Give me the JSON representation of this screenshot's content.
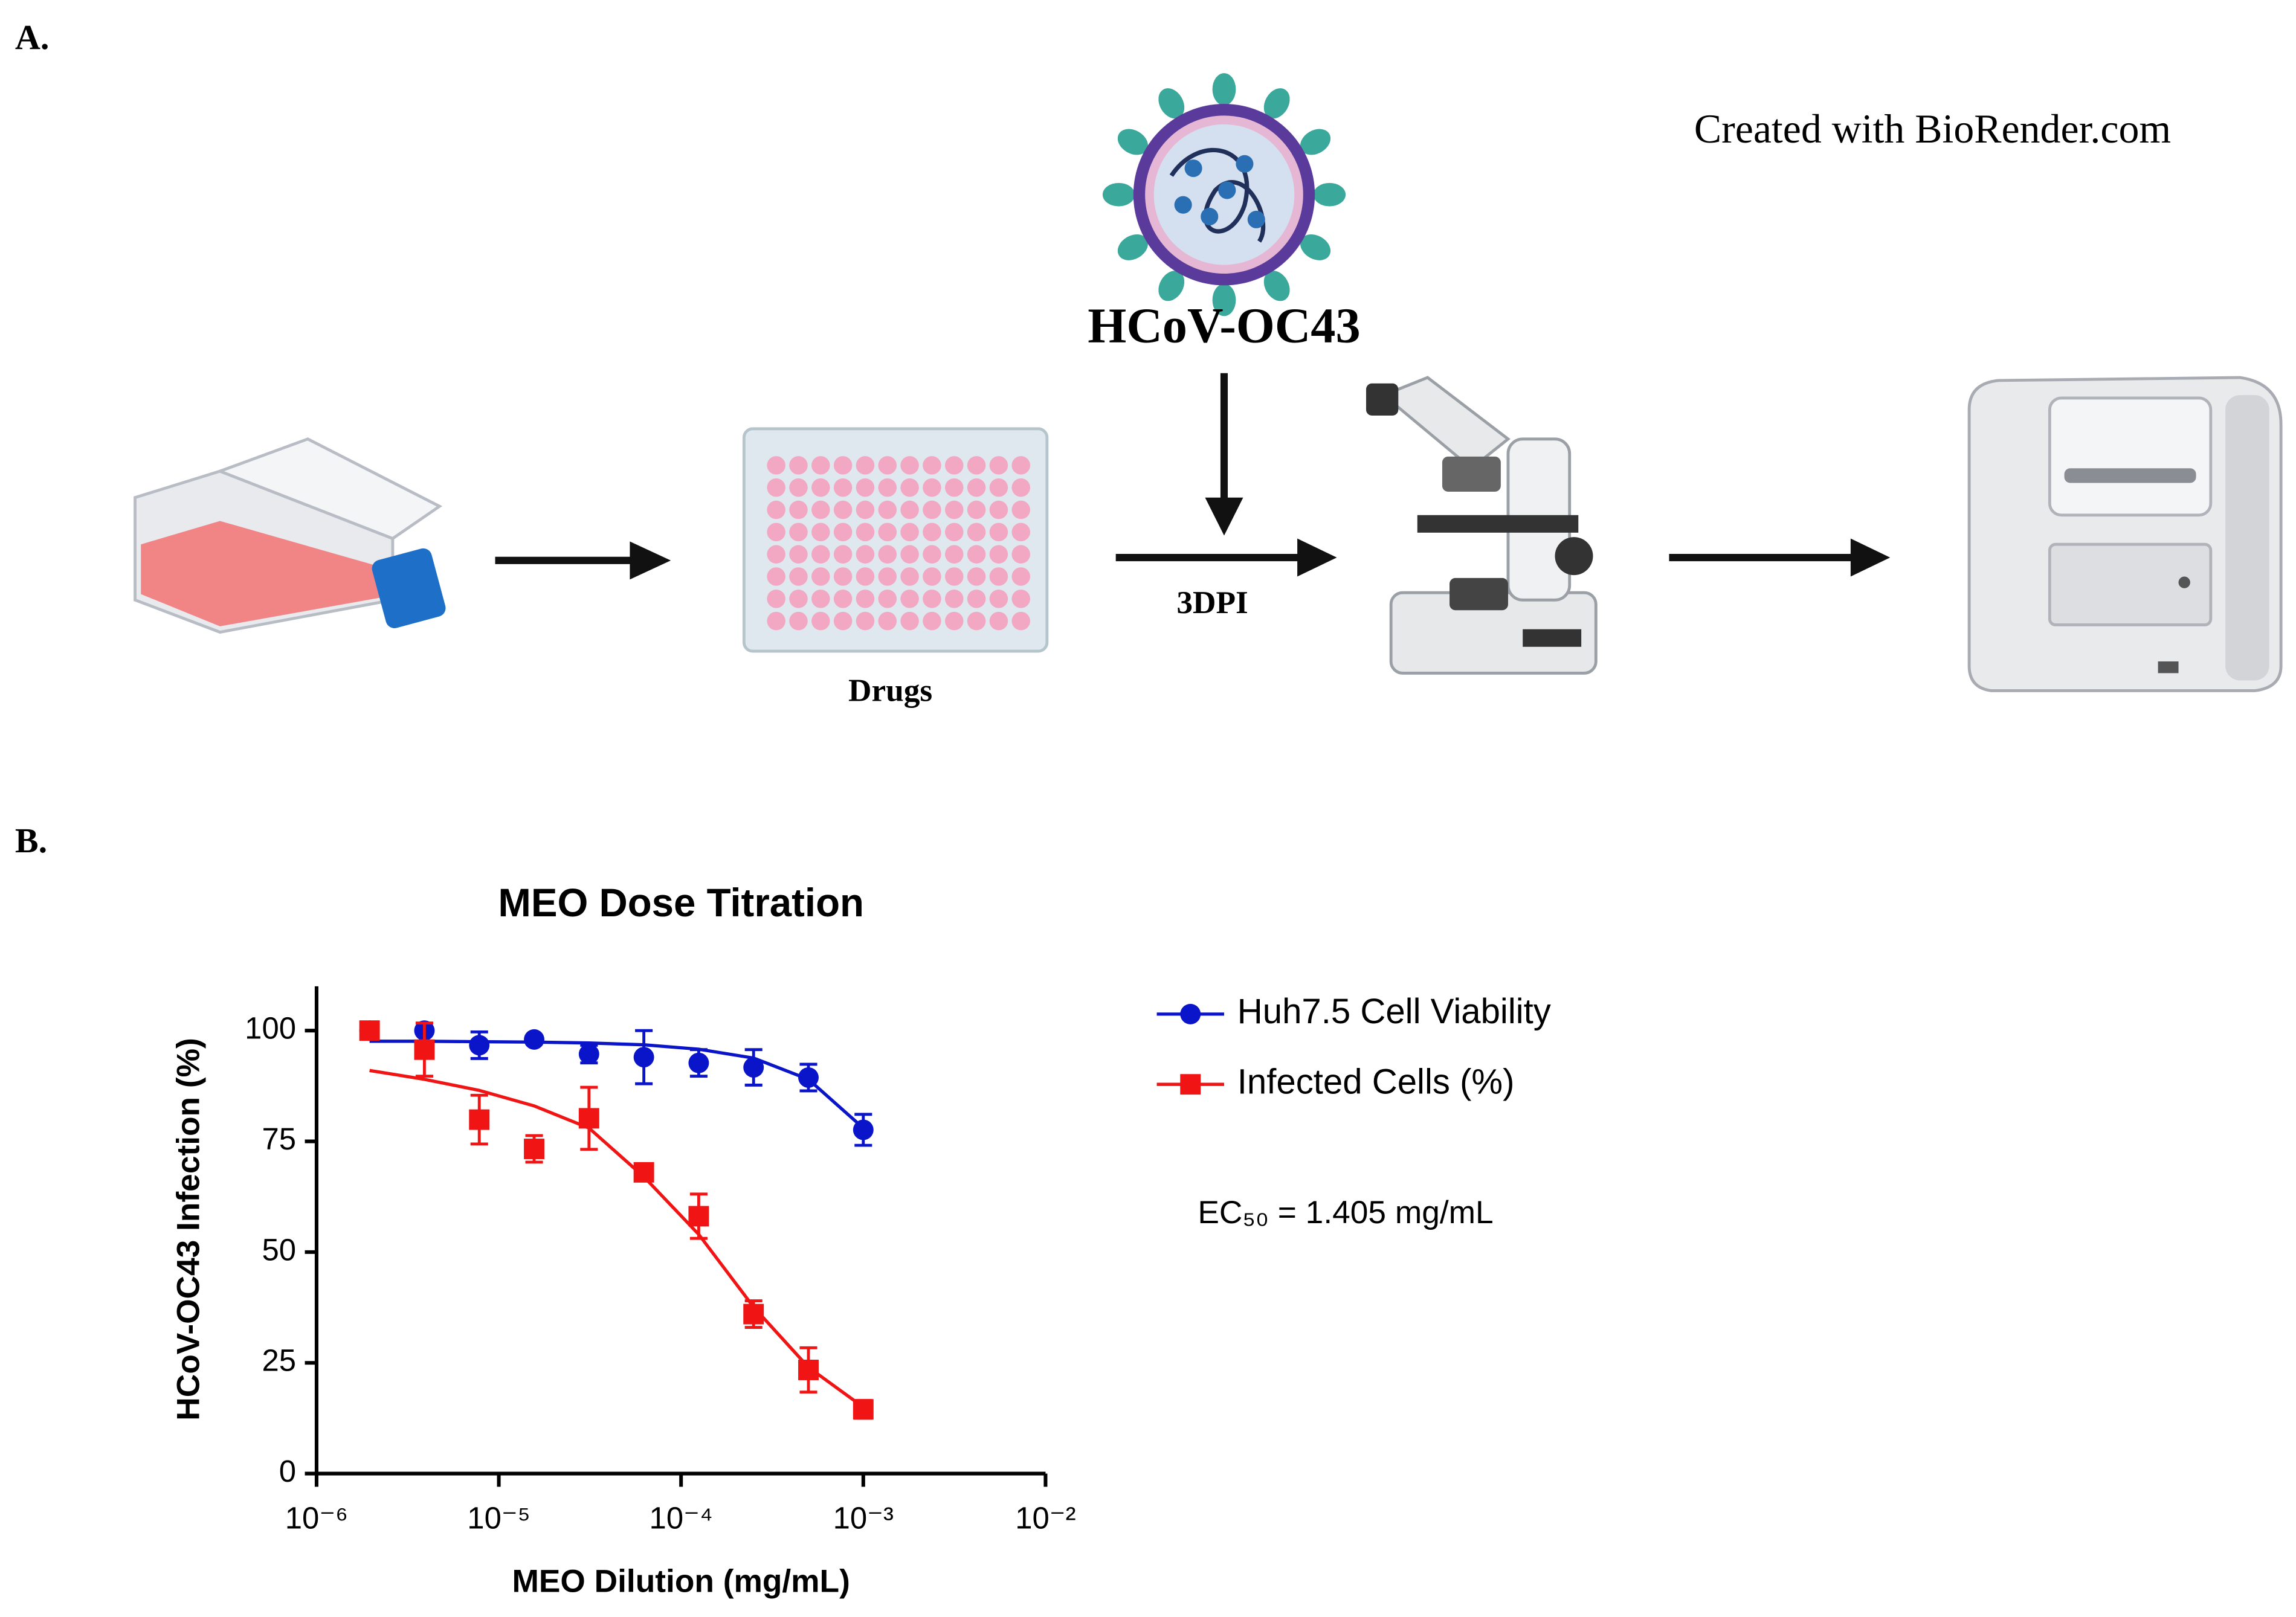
{
  "panel_a": {
    "label": "A.",
    "credit": "Created with BioRender.com",
    "virus_label": "HCoV-OC43",
    "plate_label": "Drugs",
    "arrow_label": "3DPI"
  },
  "panel_b_label": "B.",
  "chart_data": {
    "type": "scatter",
    "title": "MEO Dose Titration",
    "x_label": "MEO Dilution (mg/mL)",
    "y_label": "HCoV-OC43 Infection (%)",
    "annotation": "EC₅₀ = 1.405 mg/mL",
    "xscale": "log",
    "x": [
      1.953e-06,
      3.906e-06,
      7.8125e-06,
      1.5625e-05,
      3.125e-05,
      6.25e-05,
      0.000125,
      0.00025,
      0.0005,
      0.001
    ],
    "series": [
      {
        "name": "Huh7.5 Cell Viability",
        "color": "#0a14c8",
        "marker": "circle",
        "values": [
          100,
          100,
          96.7,
          98,
          94.7,
          94,
          92.7,
          91.7,
          89.4,
          77.6
        ],
        "errors": [
          0.5,
          0.5,
          3,
          0.5,
          2,
          6,
          3,
          4,
          3,
          3.5
        ],
        "fit": [
          97.6,
          97.6,
          97.5,
          97.4,
          97.2,
          96.8,
          95.8,
          93.8,
          89,
          78
        ]
      },
      {
        "name": "Infected Cells (%)",
        "color": "#f01414",
        "marker": "square",
        "values": [
          100,
          95.7,
          79.9,
          73.3,
          80.2,
          68,
          58.1,
          36,
          23.4,
          14.5
        ],
        "errors": [
          0.5,
          6,
          5.5,
          3,
          7,
          0.5,
          5,
          3,
          5,
          2
        ],
        "fit": [
          91,
          89,
          86.5,
          83,
          78,
          67,
          54,
          37.6,
          24,
          15
        ]
      }
    ],
    "xlim": [
      1e-06,
      0.01
    ],
    "ylim": [
      0,
      110
    ],
    "xticks": [
      {
        "value": 1e-06,
        "label": "10⁻⁶"
      },
      {
        "value": 1e-05,
        "label": "10⁻⁵"
      },
      {
        "value": 0.0001,
        "label": "10⁻⁴"
      },
      {
        "value": 0.001,
        "label": "10⁻³"
      },
      {
        "value": 0.01,
        "label": "10⁻²"
      }
    ],
    "yticks": [
      0,
      25,
      50,
      75,
      100
    ]
  }
}
